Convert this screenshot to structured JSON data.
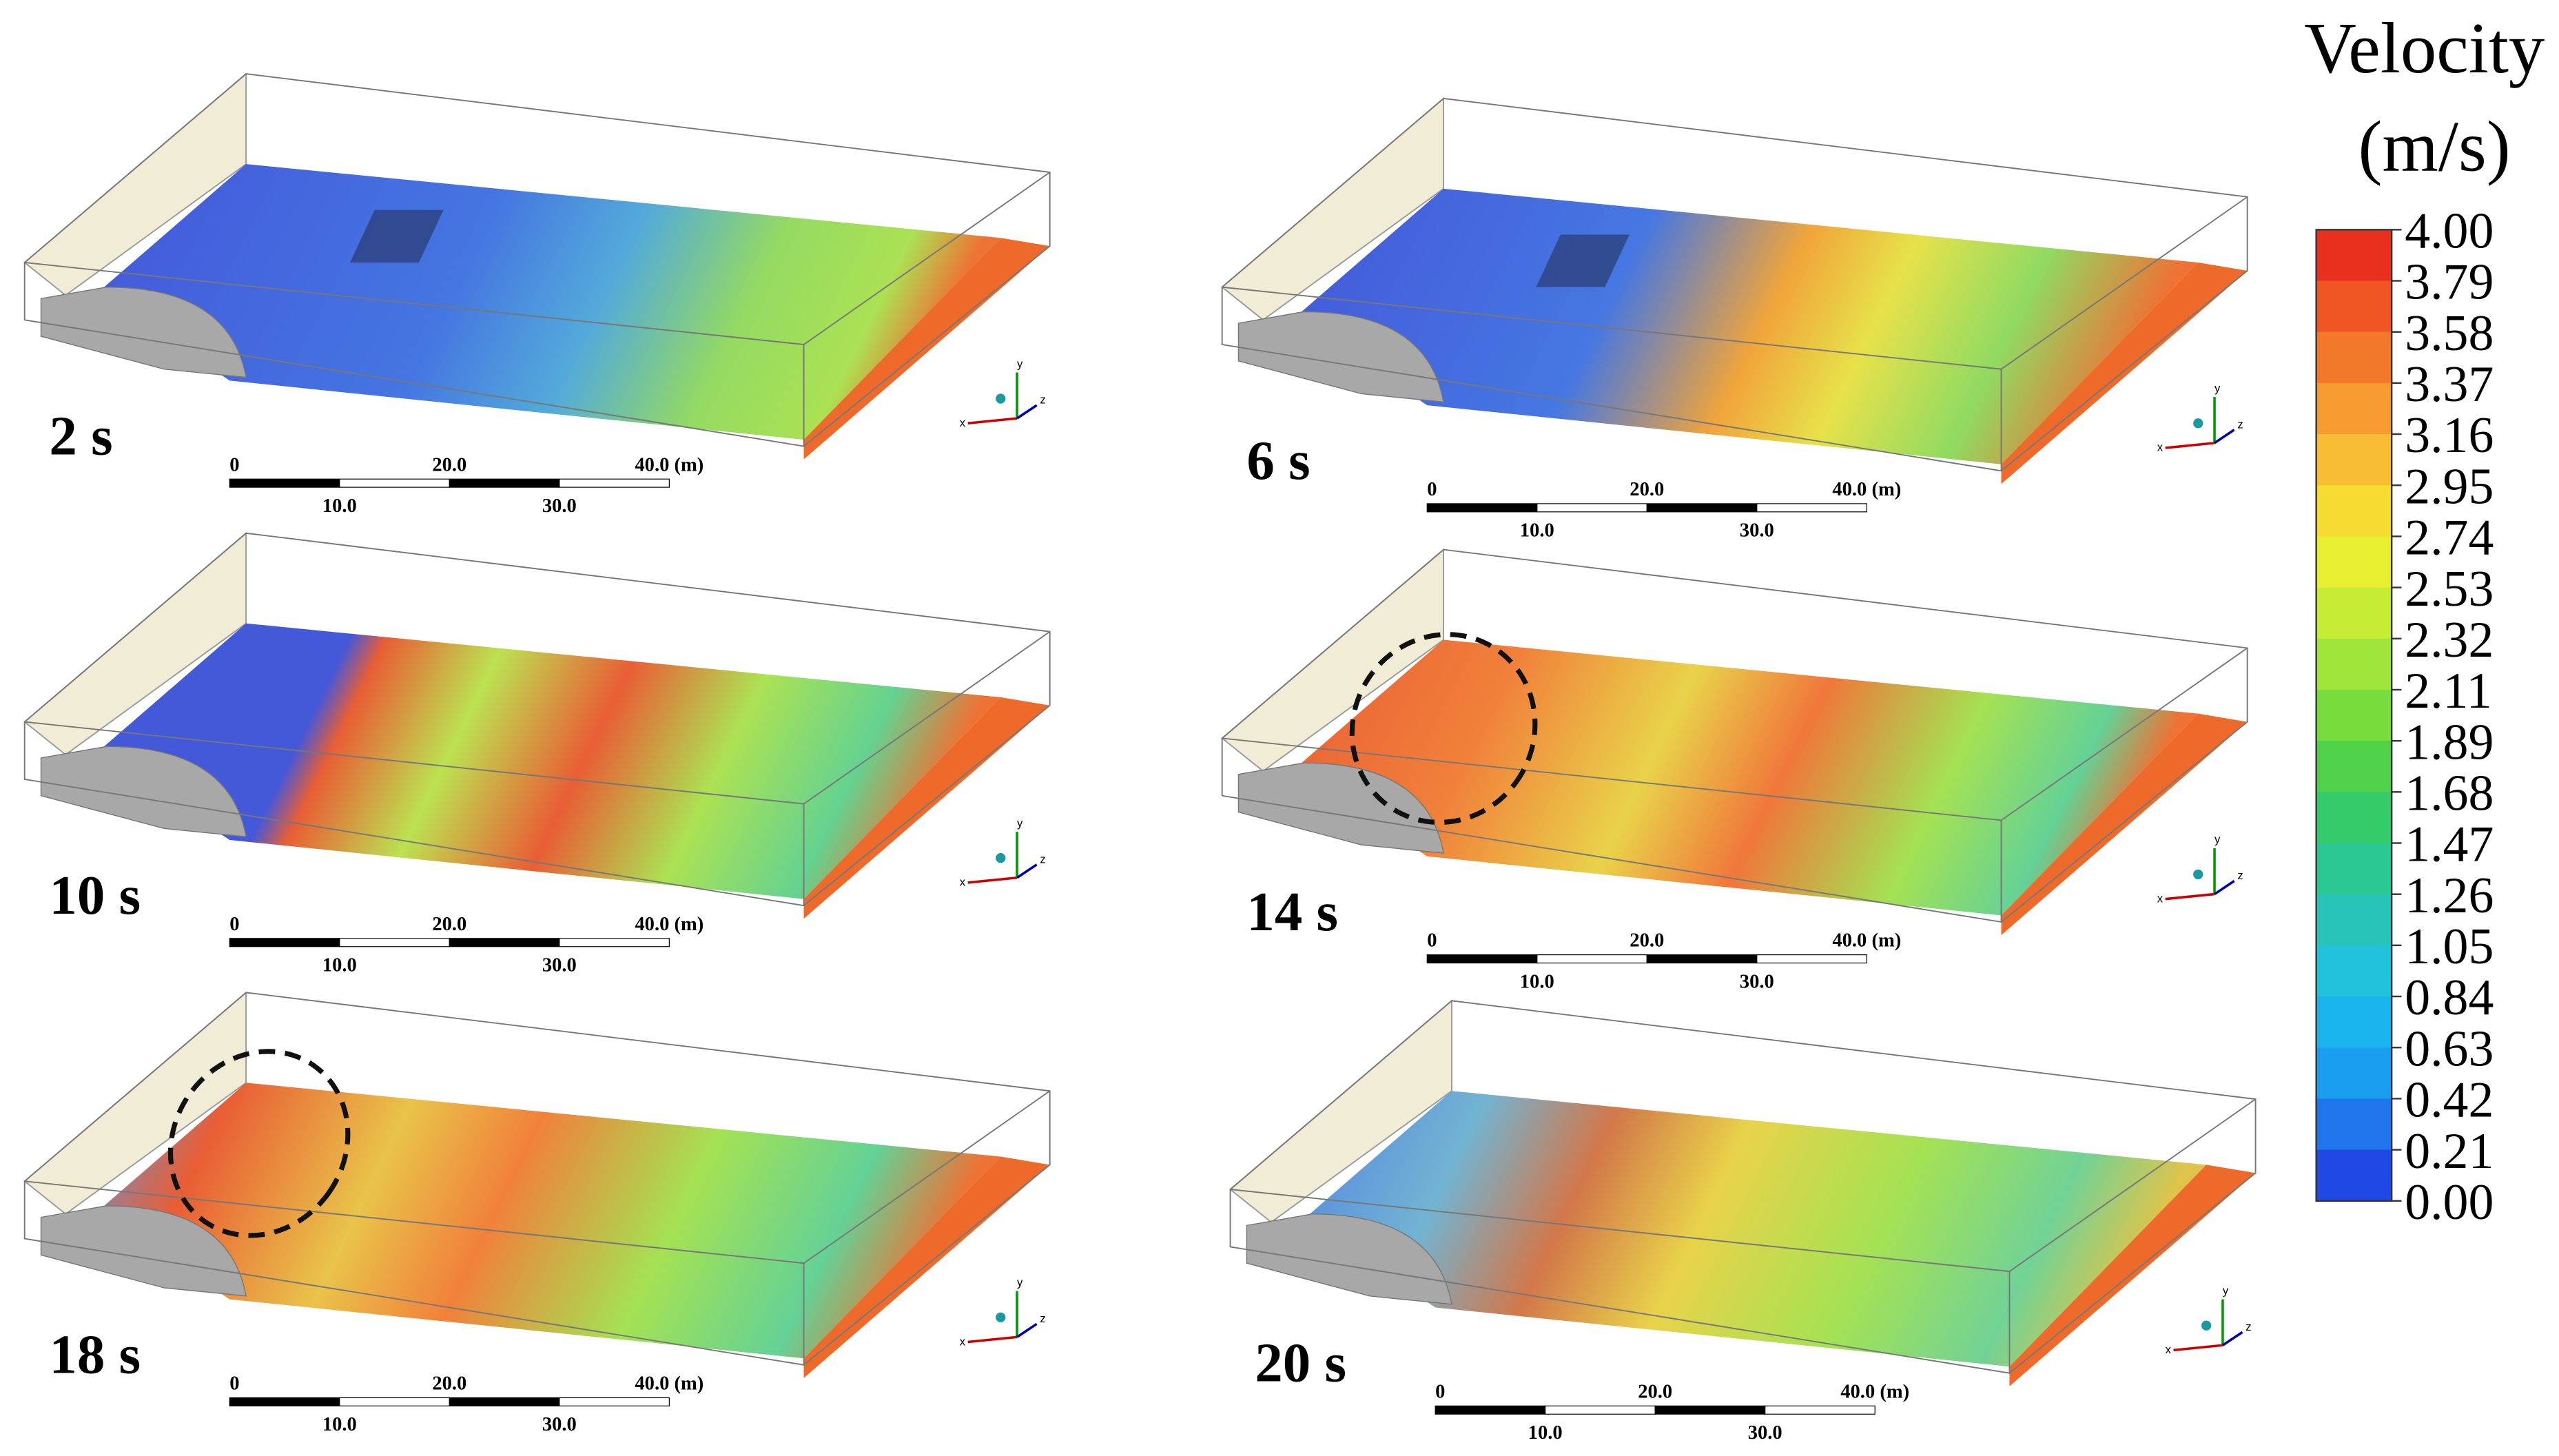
{
  "panels": [
    {
      "time": "2 s",
      "scale": {
        "top": [
          "0",
          "20.0",
          "40.0 (m)"
        ],
        "bottom": [
          "10.0",
          "30.0"
        ]
      }
    },
    {
      "time": "6 s",
      "scale": {
        "top": [
          "0",
          "20.0",
          "40.0 (m)"
        ],
        "bottom": [
          "10.0",
          "30.0"
        ]
      }
    },
    {
      "time": "10 s",
      "scale": {
        "top": [
          "0",
          "20.0",
          "40.0 (m)"
        ],
        "bottom": [
          "10.0",
          "30.0"
        ]
      }
    },
    {
      "time": "14 s",
      "scale": {
        "top": [
          "0",
          "20.0",
          "40.0 (m)"
        ],
        "bottom": [
          "10.0",
          "30.0"
        ]
      }
    },
    {
      "time": "18 s",
      "scale": {
        "top": [
          "0",
          "20.0",
          "40.0 (m)"
        ],
        "bottom": [
          "10.0",
          "30.0"
        ]
      }
    },
    {
      "time": "20 s",
      "scale": {
        "top": [
          "0",
          "20.0",
          "40.0 (m)"
        ],
        "bottom": [
          "10.0",
          "30.0"
        ]
      }
    }
  ],
  "axes_triad": [
    "x",
    "y",
    "z"
  ],
  "colorbar": {
    "title": "Velocity",
    "unit": "(m/s)",
    "ticks": [
      "4.00",
      "3.79",
      "3.58",
      "3.37",
      "3.16",
      "2.95",
      "2.74",
      "2.53",
      "2.32",
      "2.11",
      "1.89",
      "1.68",
      "1.47",
      "1.26",
      "1.05",
      "0.84",
      "0.63",
      "0.42",
      "0.21",
      "0.00"
    ]
  }
}
